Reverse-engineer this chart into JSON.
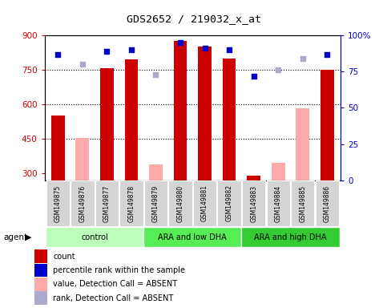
{
  "title": "GDS2652 / 219032_x_at",
  "samples": [
    "GSM149875",
    "GSM149876",
    "GSM149877",
    "GSM149878",
    "GSM149879",
    "GSM149880",
    "GSM149881",
    "GSM149882",
    "GSM149883",
    "GSM149884",
    "GSM149885",
    "GSM149886"
  ],
  "groups": [
    {
      "label": "control",
      "color": "#bbffbb",
      "samples": [
        0,
        1,
        2,
        3
      ]
    },
    {
      "label": "ARA and low DHA",
      "color": "#55ee55",
      "samples": [
        4,
        5,
        6,
        7
      ]
    },
    {
      "label": "ARA and high DHA",
      "color": "#22dd22",
      "samples": [
        8,
        9,
        10,
        11
      ]
    }
  ],
  "count_values": [
    553,
    null,
    757,
    796,
    null,
    876,
    853,
    798,
    290,
    null,
    null,
    749
  ],
  "count_absent": [
    null,
    453,
    null,
    null,
    340,
    null,
    null,
    null,
    null,
    345,
    583,
    null
  ],
  "rank_values": [
    87,
    null,
    89,
    90,
    null,
    95,
    91,
    90,
    72,
    null,
    null,
    87
  ],
  "rank_absent": [
    null,
    80,
    null,
    null,
    73,
    null,
    null,
    null,
    null,
    76,
    84,
    null
  ],
  "ylim_left": [
    270,
    900
  ],
  "ylim_right": [
    0,
    100
  ],
  "yticks_left": [
    300,
    450,
    600,
    750,
    900
  ],
  "yticks_right": [
    0,
    25,
    50,
    75,
    100
  ],
  "ytick_labels_left": [
    "300",
    "450",
    "600",
    "750",
    "900"
  ],
  "ytick_labels_right": [
    "0",
    "25",
    "50",
    "75",
    "100%"
  ],
  "bar_width": 0.55,
  "count_color": "#cc0000",
  "count_absent_color": "#ffaaaa",
  "rank_color": "#0000cc",
  "rank_absent_color": "#aaaacc",
  "background_color": "#ffffff",
  "agent_label": "agent",
  "legend_items": [
    {
      "color": "#cc0000",
      "label": "count"
    },
    {
      "color": "#0000cc",
      "label": "percentile rank within the sample"
    },
    {
      "color": "#ffaaaa",
      "label": "value, Detection Call = ABSENT"
    },
    {
      "color": "#aaaacc",
      "label": "rank, Detection Call = ABSENT"
    }
  ]
}
